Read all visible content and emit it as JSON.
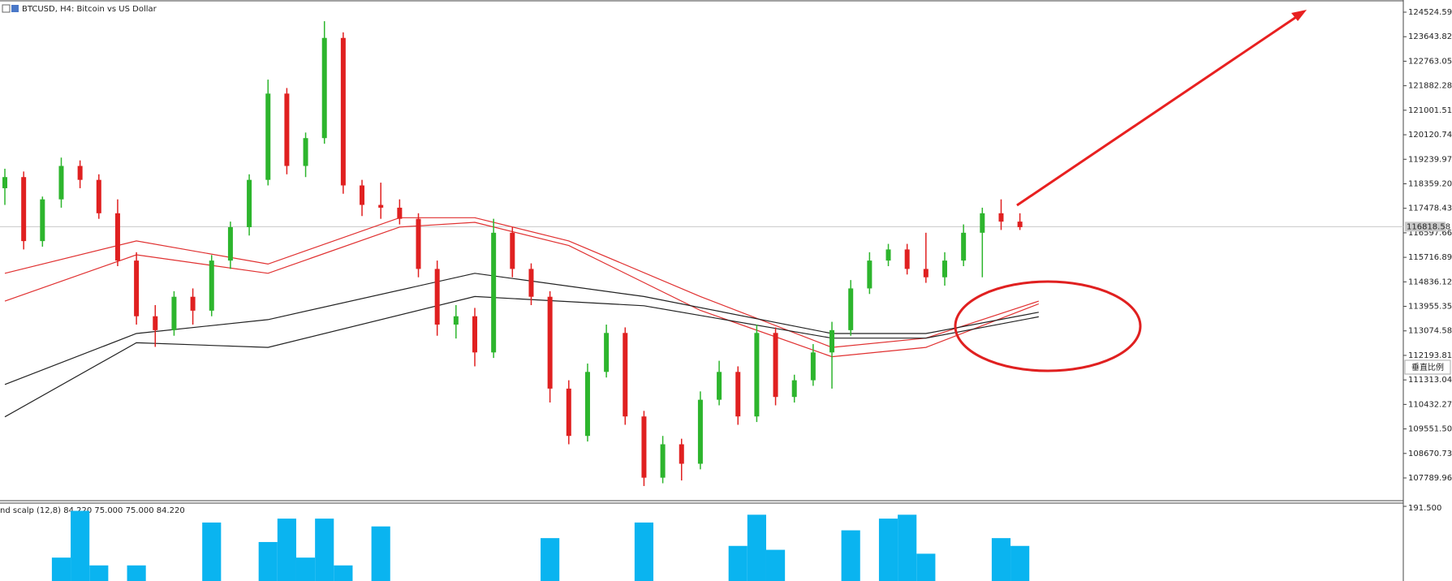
{
  "chart_data": {
    "type": "candlestick",
    "title": "BTCUSD, H4:  Bitcoin vs US Dollar",
    "ylim": [
      106974,
      124904
    ],
    "yticks": [
      124524.59,
      123643.82,
      122763.05,
      121882.28,
      121001.51,
      120120.74,
      119239.97,
      {
        "value": 118359.2,
        "label": "118359.20"
      },
      117478.43,
      116597.66,
      115716.89,
      114836.12,
      113955.35,
      113074.58,
      112193.81,
      111313.04,
      110432.27,
      {
        "value": 109551.5,
        "label": "109551.50"
      },
      108670.73,
      107789.96
    ],
    "up_color": "#2db52d",
    "down_color": "#e02020",
    "open": [
      118200,
      118600,
      116300,
      117800,
      119000,
      118500,
      117300,
      115600,
      113600,
      113100,
      114300,
      113800,
      115600,
      116800,
      118500,
      121600,
      119000,
      120000,
      123600,
      118300,
      117600,
      117500,
      117100,
      115300,
      113300,
      113600,
      112300,
      116600,
      115300,
      114300,
      111000,
      109300,
      111600,
      113000,
      110000,
      107800,
      109000,
      108300,
      110600,
      111600,
      110000,
      113000,
      110700,
      111300,
      112300,
      113100,
      114600,
      115600,
      116000,
      115300,
      115000,
      115600,
      116600,
      117300,
      117000
    ],
    "high": [
      118900,
      118800,
      117900,
      119300,
      119200,
      118700,
      117800,
      115900,
      114000,
      114500,
      114600,
      115800,
      117000,
      118700,
      122100,
      121800,
      120200,
      124200,
      123800,
      118500,
      118400,
      117800,
      117300,
      115600,
      114000,
      113900,
      117100,
      116800,
      115500,
      114500,
      111300,
      111900,
      113300,
      113200,
      110200,
      109300,
      109200,
      110900,
      112000,
      111800,
      113300,
      113200,
      111500,
      112600,
      113400,
      114900,
      115900,
      116200,
      116200,
      116600,
      115900,
      116900,
      117500,
      117800,
      117300
    ],
    "low": [
      117600,
      116000,
      116100,
      117500,
      118200,
      117100,
      115400,
      113300,
      112500,
      112900,
      113300,
      113600,
      115300,
      116500,
      118300,
      118700,
      118600,
      119800,
      118000,
      117200,
      117100,
      116900,
      115000,
      112900,
      112800,
      111800,
      112100,
      115000,
      114000,
      110500,
      109000,
      109100,
      111400,
      109700,
      107500,
      107600,
      107700,
      108100,
      110400,
      109700,
      109800,
      110400,
      110500,
      111100,
      111000,
      112900,
      114400,
      115400,
      115100,
      114800,
      114700,
      115400,
      115000,
      116700,
      116700
    ],
    "close": [
      118600,
      116300,
      117800,
      119000,
      118500,
      117300,
      115600,
      113600,
      113100,
      114300,
      113800,
      115600,
      116800,
      118500,
      121600,
      119000,
      120000,
      123600,
      118300,
      117600,
      117500,
      117100,
      115300,
      113300,
      113600,
      112300,
      116600,
      115300,
      114300,
      111000,
      109300,
      111600,
      113000,
      110000,
      107800,
      109000,
      108300,
      110600,
      111600,
      110000,
      113000,
      110700,
      111300,
      112300,
      113100,
      114600,
      115600,
      116000,
      115300,
      115000,
      115600,
      116600,
      117300,
      117000,
      116800
    ],
    "current_price": 116818.58,
    "overlays": [
      {
        "color": "#e03030",
        "x": [
          0,
          7,
          14,
          21,
          25,
          30,
          37,
          44,
          49,
          55
        ],
        "values": [
          115143,
          116307,
          115475,
          117139,
          117139,
          116307,
          114310,
          112480,
          112813,
          114144
        ]
      },
      {
        "color": "#e03030",
        "x": [
          0,
          7,
          14,
          21,
          25,
          30,
          37,
          44,
          49,
          55
        ],
        "values": [
          114144,
          115808,
          115143,
          116806,
          116973,
          116141,
          113811,
          112147,
          112480,
          114044
        ]
      },
      {
        "color": "#222222",
        "x": [
          0,
          7,
          14,
          25,
          34,
          44,
          49,
          55
        ],
        "values": [
          111150,
          112979,
          113479,
          115143,
          114310,
          112979,
          112979,
          113745
        ]
      },
      {
        "color": "#222222",
        "x": [
          0,
          7,
          14,
          25,
          34,
          44,
          49,
          55
        ],
        "values": [
          109985,
          112647,
          112480,
          114310,
          113978,
          112813,
          112813,
          113579
        ]
      }
    ],
    "indicator": {
      "label": "nd scalp (12,8) 84.220 75.000 75.000 84.220",
      "ylim": [
        0,
        191.5
      ],
      "yticks": [
        {
          "value": 191.5,
          "label": "191.500"
        }
      ],
      "color": "#0ab4f0",
      "values": [
        null,
        null,
        null,
        60,
        180,
        40,
        null,
        40,
        null,
        null,
        null,
        150,
        null,
        null,
        100,
        160,
        60,
        160,
        40,
        null,
        140,
        null,
        null,
        null,
        null,
        null,
        null,
        null,
        null,
        110,
        null,
        null,
        null,
        null,
        150,
        null,
        null,
        null,
        null,
        90,
        170,
        80,
        null,
        null,
        null,
        130,
        null,
        160,
        170,
        70,
        null,
        null,
        null,
        110,
        90
      ]
    },
    "scale_button": "垂直比例"
  }
}
